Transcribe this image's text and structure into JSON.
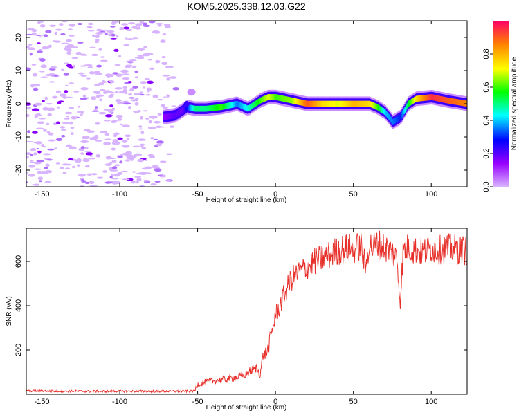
{
  "title": "KOM5.2025.338.12.03.G22",
  "chart_data": [
    {
      "type": "heatmap",
      "name": "spectrogram",
      "xlabel": "Height of straight line (km)",
      "ylabel": "Frequency (Hz)",
      "xlim": [
        -160,
        123
      ],
      "ylim": [
        -25,
        25
      ],
      "xticks": [
        -150,
        -100,
        -50,
        0,
        50,
        100
      ],
      "yticks": [
        -20,
        -10,
        0,
        10,
        20
      ],
      "colorbar": {
        "label": "Normalized spectral amplitude",
        "range": [
          0,
          1
        ],
        "ticks": [
          0.0,
          0.2,
          0.4,
          0.6,
          0.8
        ],
        "colors": [
          "#d8b4ff",
          "#9900ff",
          "#0000ff",
          "#00ffff",
          "#00ff00",
          "#ffff00",
          "#ff8000",
          "#ff0066"
        ]
      },
      "ridge": {
        "x": [
          -72,
          -65,
          -60,
          -57,
          -52,
          -45,
          -35,
          -25,
          -18,
          -10,
          -5,
          0,
          10,
          20,
          30,
          40,
          50,
          60,
          65,
          70,
          75,
          80,
          85,
          90,
          100,
          110,
          123
        ],
        "frequency": [
          -4,
          -3.5,
          -2,
          -1,
          -1.5,
          -1.5,
          -1,
          0,
          -1.5,
          1,
          2,
          2,
          1,
          0,
          0,
          0,
          0,
          0,
          -1,
          -2.5,
          -5.5,
          -4,
          0,
          1.5,
          2,
          1,
          0
        ],
        "amplitude": [
          0.15,
          0.2,
          0.18,
          0.3,
          0.5,
          0.5,
          0.6,
          0.35,
          0.45,
          0.6,
          0.7,
          0.6,
          0.65,
          0.9,
          0.75,
          0.7,
          0.8,
          0.75,
          0.6,
          0.4,
          0.35,
          0.3,
          0.55,
          0.75,
          0.95,
          0.9,
          0.85
        ]
      },
      "noise_region": {
        "x_start": -160,
        "x_end": -60
      }
    },
    {
      "type": "line",
      "name": "snr",
      "xlabel": "Height of straight line (km)",
      "ylabel": "SNR (v/v)",
      "xlim": [
        -160,
        123
      ],
      "ylim": [
        0,
        750
      ],
      "xticks": [
        -150,
        -100,
        -50,
        0,
        50,
        100
      ],
      "yticks": [
        200,
        400,
        600
      ],
      "color": "#e8302a",
      "series": [
        {
          "name": "SNR",
          "x": [
            -160,
            -140,
            -120,
            -100,
            -80,
            -60,
            -52,
            -50,
            -45,
            -40,
            -30,
            -20,
            -15,
            -12,
            -10,
            -8,
            -5,
            -2,
            0,
            3,
            5,
            10,
            15,
            20,
            25,
            30,
            35,
            40,
            45,
            50,
            55,
            58,
            60,
            62,
            65,
            70,
            75,
            78,
            80,
            82,
            85,
            90,
            95,
            100,
            105,
            110,
            115,
            123
          ],
          "y": [
            15,
            14,
            13,
            13,
            13,
            13,
            14,
            45,
            55,
            60,
            70,
            85,
            110,
            120,
            90,
            170,
            200,
            290,
            360,
            400,
            440,
            520,
            550,
            575,
            600,
            615,
            630,
            650,
            660,
            655,
            670,
            560,
            690,
            660,
            680,
            665,
            640,
            610,
            420,
            650,
            660,
            650,
            640,
            660,
            650,
            660,
            655,
            650
          ]
        }
      ]
    }
  ]
}
